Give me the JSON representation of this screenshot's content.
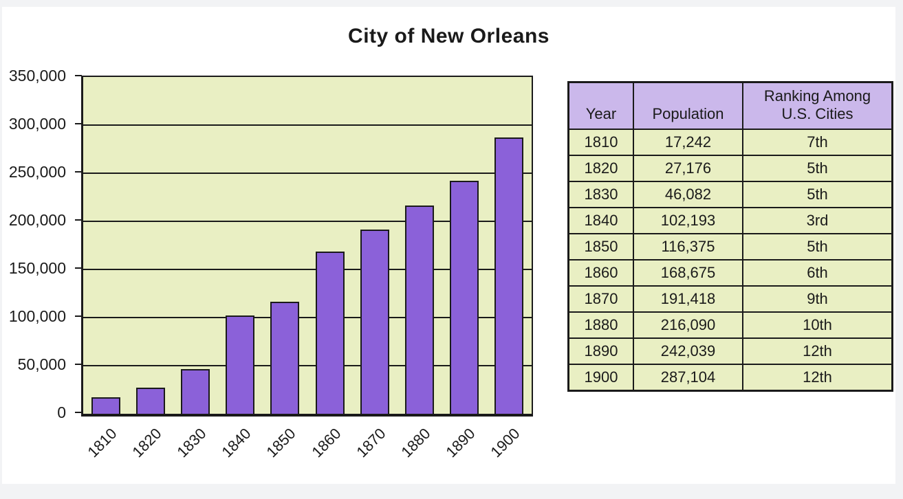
{
  "chart_data": {
    "type": "bar",
    "title": "City of New Orleans",
    "categories": [
      "1810",
      "1820",
      "1830",
      "1840",
      "1850",
      "1860",
      "1870",
      "1880",
      "1890",
      "1900"
    ],
    "values": [
      17242,
      27176,
      46082,
      102193,
      116375,
      168675,
      191418,
      216090,
      242039,
      287104
    ],
    "xlabel": "",
    "ylabel": "",
    "ylim": [
      0,
      350000
    ],
    "ytick_interval": 50000,
    "ytick_labels": [
      "350,000",
      "300,000",
      "250,000",
      "200,000",
      "150,000",
      "100,000",
      "50,000",
      "0"
    ],
    "grid": true,
    "legend": "none"
  },
  "table": {
    "headers": [
      "Year",
      "Population",
      "Ranking Among\nU.S. Cities"
    ],
    "rows": [
      [
        "1810",
        "17,242",
        "7th"
      ],
      [
        "1820",
        "27,176",
        "5th"
      ],
      [
        "1830",
        "46,082",
        "5th"
      ],
      [
        "1840",
        "102,193",
        "3rd"
      ],
      [
        "1850",
        "116,375",
        "5th"
      ],
      [
        "1860",
        "168,675",
        "6th"
      ],
      [
        "1870",
        "191,418",
        "9th"
      ],
      [
        "1880",
        "216,090",
        "10th"
      ],
      [
        "1890",
        "242,039",
        "12th"
      ],
      [
        "1900",
        "287,104",
        "12th"
      ]
    ]
  },
  "colors": {
    "bar": "#8B61D9",
    "plot_background": "#E9EFC3",
    "table_header_background": "#CBB8EB",
    "table_body_background": "#E9EFC3",
    "border": "#1A1A1A",
    "page_background": "#F2F3F5",
    "card_background": "#FFFFFF"
  }
}
